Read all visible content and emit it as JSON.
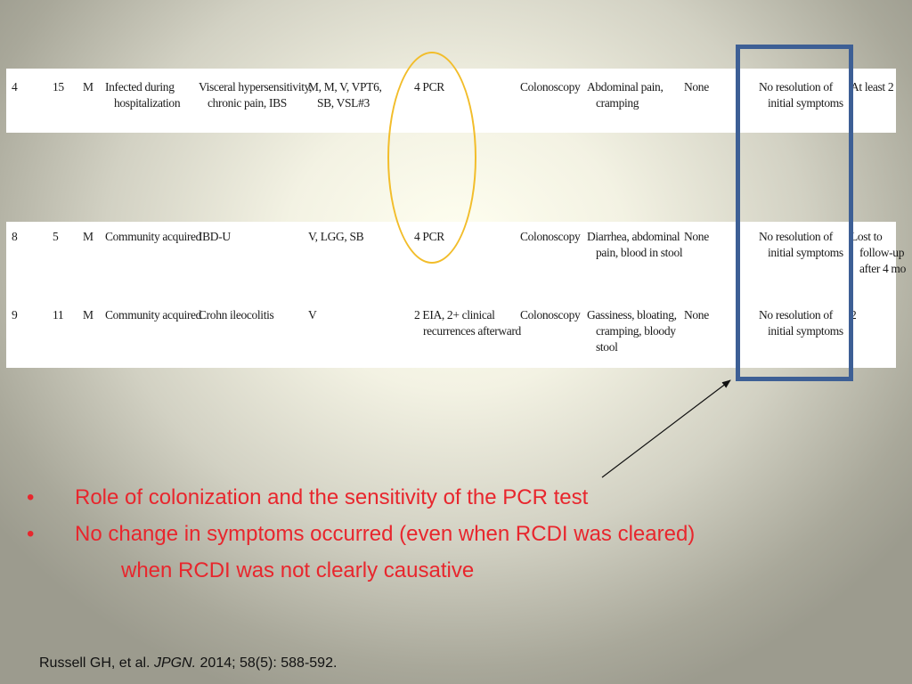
{
  "table_top": {
    "rows": [
      {
        "case": "4",
        "age": "15",
        "sex": "M",
        "acquisition": [
          "Infected during",
          "hospitalization"
        ],
        "history": [
          "Visceral hypersensitivity,",
          "chronic pain, IBS"
        ],
        "treatment": [
          "M, M, V, VPT6,",
          "SB, VSL#3"
        ],
        "diagnostic": [
          "4 PCR"
        ],
        "modality": [
          "Colonoscopy"
        ],
        "symptoms": [
          "Abdominal pain,",
          "cramping"
        ],
        "complications": [
          "None"
        ],
        "outcome": [
          "No resolution of",
          "initial symptoms"
        ],
        "followup": [
          "At least 2"
        ]
      }
    ]
  },
  "table_bottom": {
    "rows": [
      {
        "case": "8",
        "age": "5",
        "sex": "M",
        "acquisition": [
          "Community acquired"
        ],
        "history": [
          "IBD-U"
        ],
        "treatment": [
          "V, LGG, SB"
        ],
        "diagnostic": [
          "4 PCR"
        ],
        "modality": [
          "Colonoscopy"
        ],
        "symptoms": [
          "Diarrhea, abdominal",
          "pain, blood in stool"
        ],
        "complications": [
          "None"
        ],
        "outcome": [
          "No resolution of",
          "initial symptoms"
        ],
        "followup": [
          "Lost to",
          "follow-up",
          "after 4 mo"
        ]
      },
      {
        "case": "9",
        "age": "11",
        "sex": "M",
        "acquisition": [
          "Community acquired"
        ],
        "history": [
          "Crohn ileocolitis"
        ],
        "treatment": [
          "V"
        ],
        "diagnostic": [
          "2 EIA, 2+ clinical",
          "recurrences afterward"
        ],
        "modality": [
          "Colonoscopy"
        ],
        "symptoms": [
          "Gassiness, bloating,",
          "cramping, bloody",
          "stool"
        ],
        "complications": [
          "None"
        ],
        "outcome": [
          "No resolution of",
          "initial symptoms"
        ],
        "followup": [
          "2"
        ]
      }
    ]
  },
  "bullets": [
    {
      "marker": "•",
      "lines": [
        "Role of colonization and the sensitivity of the PCR test"
      ]
    },
    {
      "marker": "•",
      "lines": [
        "No change in symptoms occurred (even when RCDI was cleared)",
        "when RCDI was not clearly causative"
      ]
    }
  ],
  "citation": {
    "authors": "Russell GH, et al.",
    "journal": "JPGN.",
    "details": "2014; 58(5): 588-592."
  },
  "colors": {
    "bullet_text": "#e8262d",
    "oval_outline": "#f2bd2a",
    "highlight_box": "#3d5f95"
  }
}
